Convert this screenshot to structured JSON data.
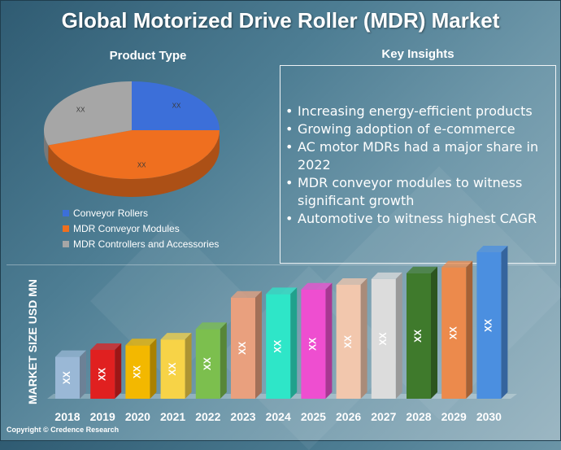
{
  "title": "Global Motorized Drive Roller (MDR) Market",
  "pie_section_title": "Product Type",
  "insights_title": "Key Insights",
  "insights": [
    "Increasing energy-efficient products",
    "Growing adoption of e-commerce",
    "AC motor MDRs had a major share in 2022",
    "MDR conveyor modules to witness significant growth",
    "Automotive to witness highest CAGR"
  ],
  "copyright": "Copyright © Credence Research",
  "chart_data": [
    {
      "type": "pie",
      "title": "Product Type",
      "legend_position": "bottom-left",
      "slices": [
        {
          "name": "Conveyor Rollers",
          "share": 0.25,
          "label": "XX",
          "color": "#3c6fd9"
        },
        {
          "name": "MDR Conveyor Modules",
          "share": 0.45,
          "label": "XX",
          "color": "#ef6f1f"
        },
        {
          "name": "MDR Controllers and Accessories",
          "share": 0.3,
          "label": "XX",
          "color": "#a6a6a6"
        }
      ]
    },
    {
      "type": "bar",
      "ylabel": "MARKET SIZE USD MN",
      "categories": [
        "2018",
        "2019",
        "2020",
        "2021",
        "2022",
        "2023",
        "2024",
        "2025",
        "2026",
        "2027",
        "2028",
        "2029",
        "2030"
      ],
      "values": [
        3.6,
        4.2,
        4.6,
        5.1,
        6.0,
        8.7,
        9.0,
        9.4,
        9.8,
        10.3,
        10.8,
        11.3,
        12.6
      ],
      "value_labels": [
        "XX",
        "XX",
        "XX",
        "XX",
        "XX",
        "XX",
        "XX",
        "XX",
        "XX",
        "XX",
        "XX",
        "XX",
        "XX"
      ],
      "colors": [
        "#9ab8d6",
        "#e02020",
        "#f3b800",
        "#f7d347",
        "#7cbf4e",
        "#e9a07e",
        "#2ee6c8",
        "#ee4ed0",
        "#f2c7ad",
        "#dcdcdc",
        "#3f7a2c",
        "#ec8a4c",
        "#4b8fe0"
      ],
      "ylim": [
        0,
        14
      ],
      "grid": false
    }
  ]
}
